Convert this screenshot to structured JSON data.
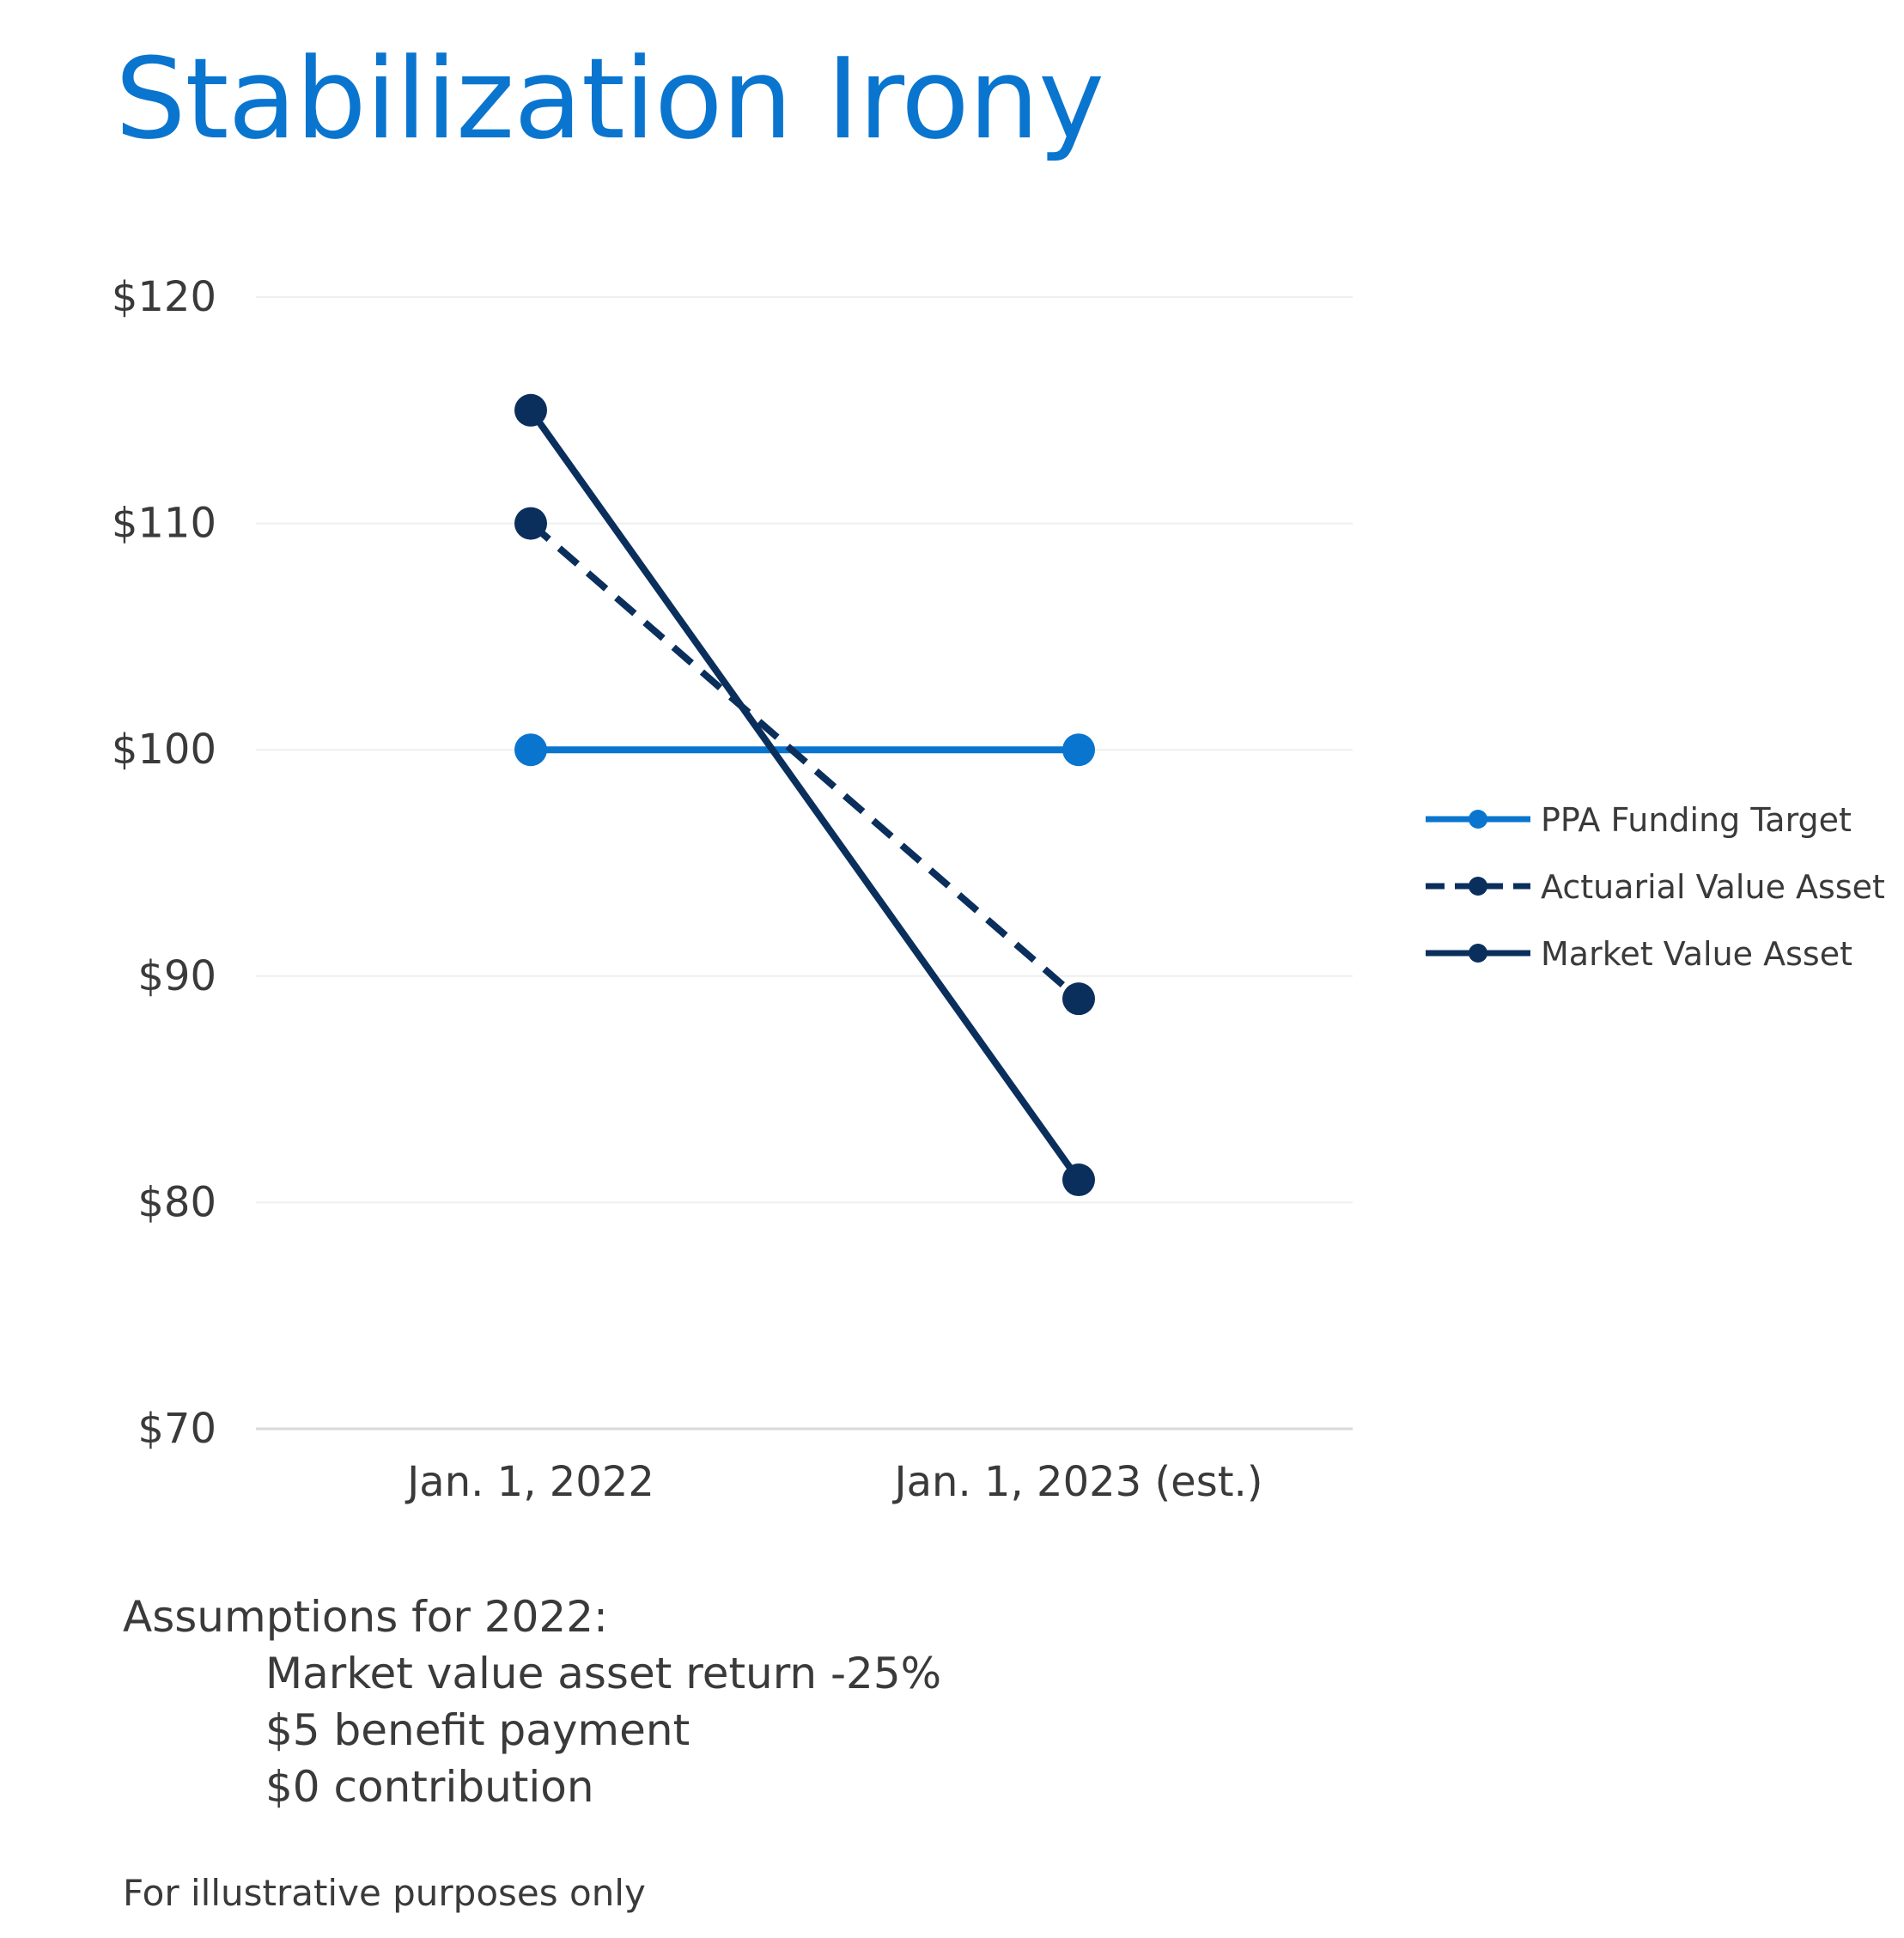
{
  "title": "Stabilization Irony",
  "chart_data": {
    "type": "line",
    "categories": [
      "Jan. 1, 2022",
      "Jan. 1, 2023 (est.)"
    ],
    "y_tick_labels": [
      "$120",
      "$110",
      "$100",
      "$90",
      "$80",
      "$70"
    ],
    "ylim": [
      70,
      120
    ],
    "y_ticks": [
      120,
      110,
      100,
      90,
      80,
      70
    ],
    "grid": true,
    "legend_position": "right",
    "series": [
      {
        "name": "PPA Funding Target",
        "values": [
          100,
          100
        ],
        "color": "#0a75cf",
        "style": "solid"
      },
      {
        "name": "Actuarial Value Asset",
        "values": [
          110,
          89
        ],
        "color": "#0b2f5c",
        "style": "dashed"
      },
      {
        "name": "Market Value Asset",
        "values": [
          115,
          81
        ],
        "color": "#0b2f5c",
        "style": "solid"
      }
    ]
  },
  "assumptions": {
    "heading": "Assumptions for 2022:",
    "items": [
      "Market value asset return -25%",
      "$5 benefit payment",
      "$0 contribution"
    ]
  },
  "footnote": "For illustrative purposes only"
}
